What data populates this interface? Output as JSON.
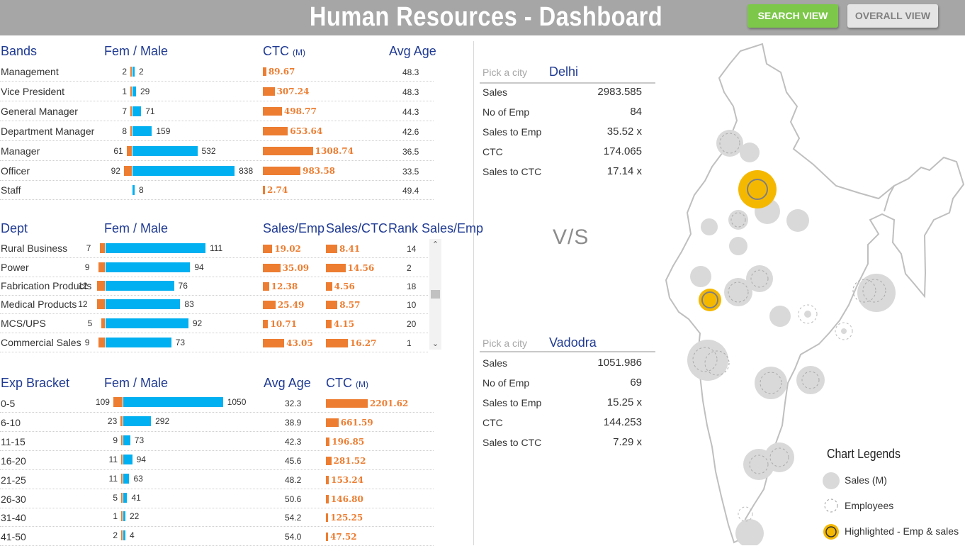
{
  "header": {
    "title": "Human Resources - Dashboard",
    "search_view": "SEARCH VIEW",
    "overall_view": "OVERALL VIEW"
  },
  "bands": {
    "headers": {
      "c1": "Bands",
      "c2": "Fem / Male",
      "c3": "CTC",
      "c3_unit": "(M)",
      "c4": "Avg Age"
    },
    "rows": [
      {
        "name": "Management",
        "fem": "2",
        "male": "2",
        "ctc": "89.67",
        "age": "48.3"
      },
      {
        "name": "Vice President",
        "fem": "1",
        "male": "29",
        "ctc": "307.24",
        "age": "48.3"
      },
      {
        "name": "General Manager",
        "fem": "7",
        "male": "71",
        "ctc": "498.77",
        "age": "44.3"
      },
      {
        "name": "Department Manager",
        "fem": "8",
        "male": "159",
        "ctc": "653.64",
        "age": "42.6"
      },
      {
        "name": "Manager",
        "fem": "61",
        "male": "532",
        "ctc": "1308.74",
        "age": "36.5"
      },
      {
        "name": "Officer",
        "fem": "92",
        "male": "838",
        "ctc": "983.58",
        "age": "33.5"
      },
      {
        "name": "Staff",
        "fem": "",
        "male": "8",
        "ctc": "2.74",
        "age": "49.4"
      }
    ]
  },
  "dept": {
    "headers": {
      "c1": "Dept",
      "c2": "Fem / Male",
      "c3": "Sales/Emp",
      "c4": "Sales/CTC",
      "c5": "Rank Sales/Emp"
    },
    "rows": [
      {
        "name": "Rural Business",
        "fem": "7",
        "male": "111",
        "se": "19.02",
        "sc": "8.41",
        "rank": "14"
      },
      {
        "name": "Power",
        "fem": "9",
        "male": "94",
        "se": "35.09",
        "sc": "14.56",
        "rank": "2"
      },
      {
        "name": "Fabrication Products",
        "fem": "12",
        "male": "76",
        "se": "12.38",
        "sc": "4.56",
        "rank": "18"
      },
      {
        "name": "Medical Products",
        "fem": "12",
        "male": "83",
        "se": "25.49",
        "sc": "8.57",
        "rank": "10"
      },
      {
        "name": "MCS/UPS",
        "fem": "5",
        "male": "92",
        "se": "10.71",
        "sc": "4.15",
        "rank": "20"
      },
      {
        "name": "Commercial Sales",
        "fem": "9",
        "male": "73",
        "se": "43.05",
        "sc": "16.27",
        "rank": "1"
      }
    ]
  },
  "exp": {
    "headers": {
      "c1": "Exp Bracket",
      "c2": "Fem / Male",
      "c3": "Avg Age",
      "c4": "CTC",
      "c4_unit": "(M)"
    },
    "rows": [
      {
        "name": "0-5",
        "fem": "109",
        "male": "1050",
        "age": "32.3",
        "ctc": "2201.62"
      },
      {
        "name": "6-10",
        "fem": "23",
        "male": "292",
        "age": "38.9",
        "ctc": "661.59"
      },
      {
        "name": "11-15",
        "fem": "9",
        "male": "73",
        "age": "42.3",
        "ctc": "196.85"
      },
      {
        "name": "16-20",
        "fem": "11",
        "male": "94",
        "age": "45.6",
        "ctc": "281.52"
      },
      {
        "name": "21-25",
        "fem": "11",
        "male": "63",
        "age": "48.2",
        "ctc": "153.24"
      },
      {
        "name": "26-30",
        "fem": "5",
        "male": "41",
        "age": "50.6",
        "ctc": "146.80"
      },
      {
        "name": "31-40",
        "fem": "1",
        "male": "22",
        "age": "54.2",
        "ctc": "125.25"
      },
      {
        "name": "41-50",
        "fem": "2",
        "male": "4",
        "age": "54.0",
        "ctc": "47.52"
      }
    ]
  },
  "compare": {
    "pick_label": "Pick a city",
    "vs": "V/S",
    "city1": {
      "name": "Delhi",
      "rows": [
        {
          "label": "Sales",
          "value": "2983.585"
        },
        {
          "label": "No of Emp",
          "value": "84"
        },
        {
          "label": "Sales to Emp",
          "value": "35.52 x"
        },
        {
          "label": "CTC",
          "value": "174.065"
        },
        {
          "label": "Sales to CTC",
          "value": "17.14 x"
        }
      ]
    },
    "city2": {
      "name": "Vadodra",
      "rows": [
        {
          "label": "Sales",
          "value": "1051.986"
        },
        {
          "label": "No of Emp",
          "value": "69"
        },
        {
          "label": "Sales to Emp",
          "value": "15.25 x"
        },
        {
          "label": "CTC",
          "value": "144.253"
        },
        {
          "label": "Sales to CTC",
          "value": "7.29 x"
        }
      ]
    }
  },
  "legend": {
    "title": "Chart Legends",
    "sales": "Sales (M)",
    "employees": "Employees",
    "highlighted": "Highlighted - Emp & sales"
  },
  "colors": {
    "female": "#ed7d31",
    "male": "#00b0f0",
    "value_bar": "#ed7d31",
    "header_bg": "#a6a6a6",
    "search_btn": "#7dc84a",
    "highlight": "#f5b800",
    "heading": "#1f3a93"
  }
}
